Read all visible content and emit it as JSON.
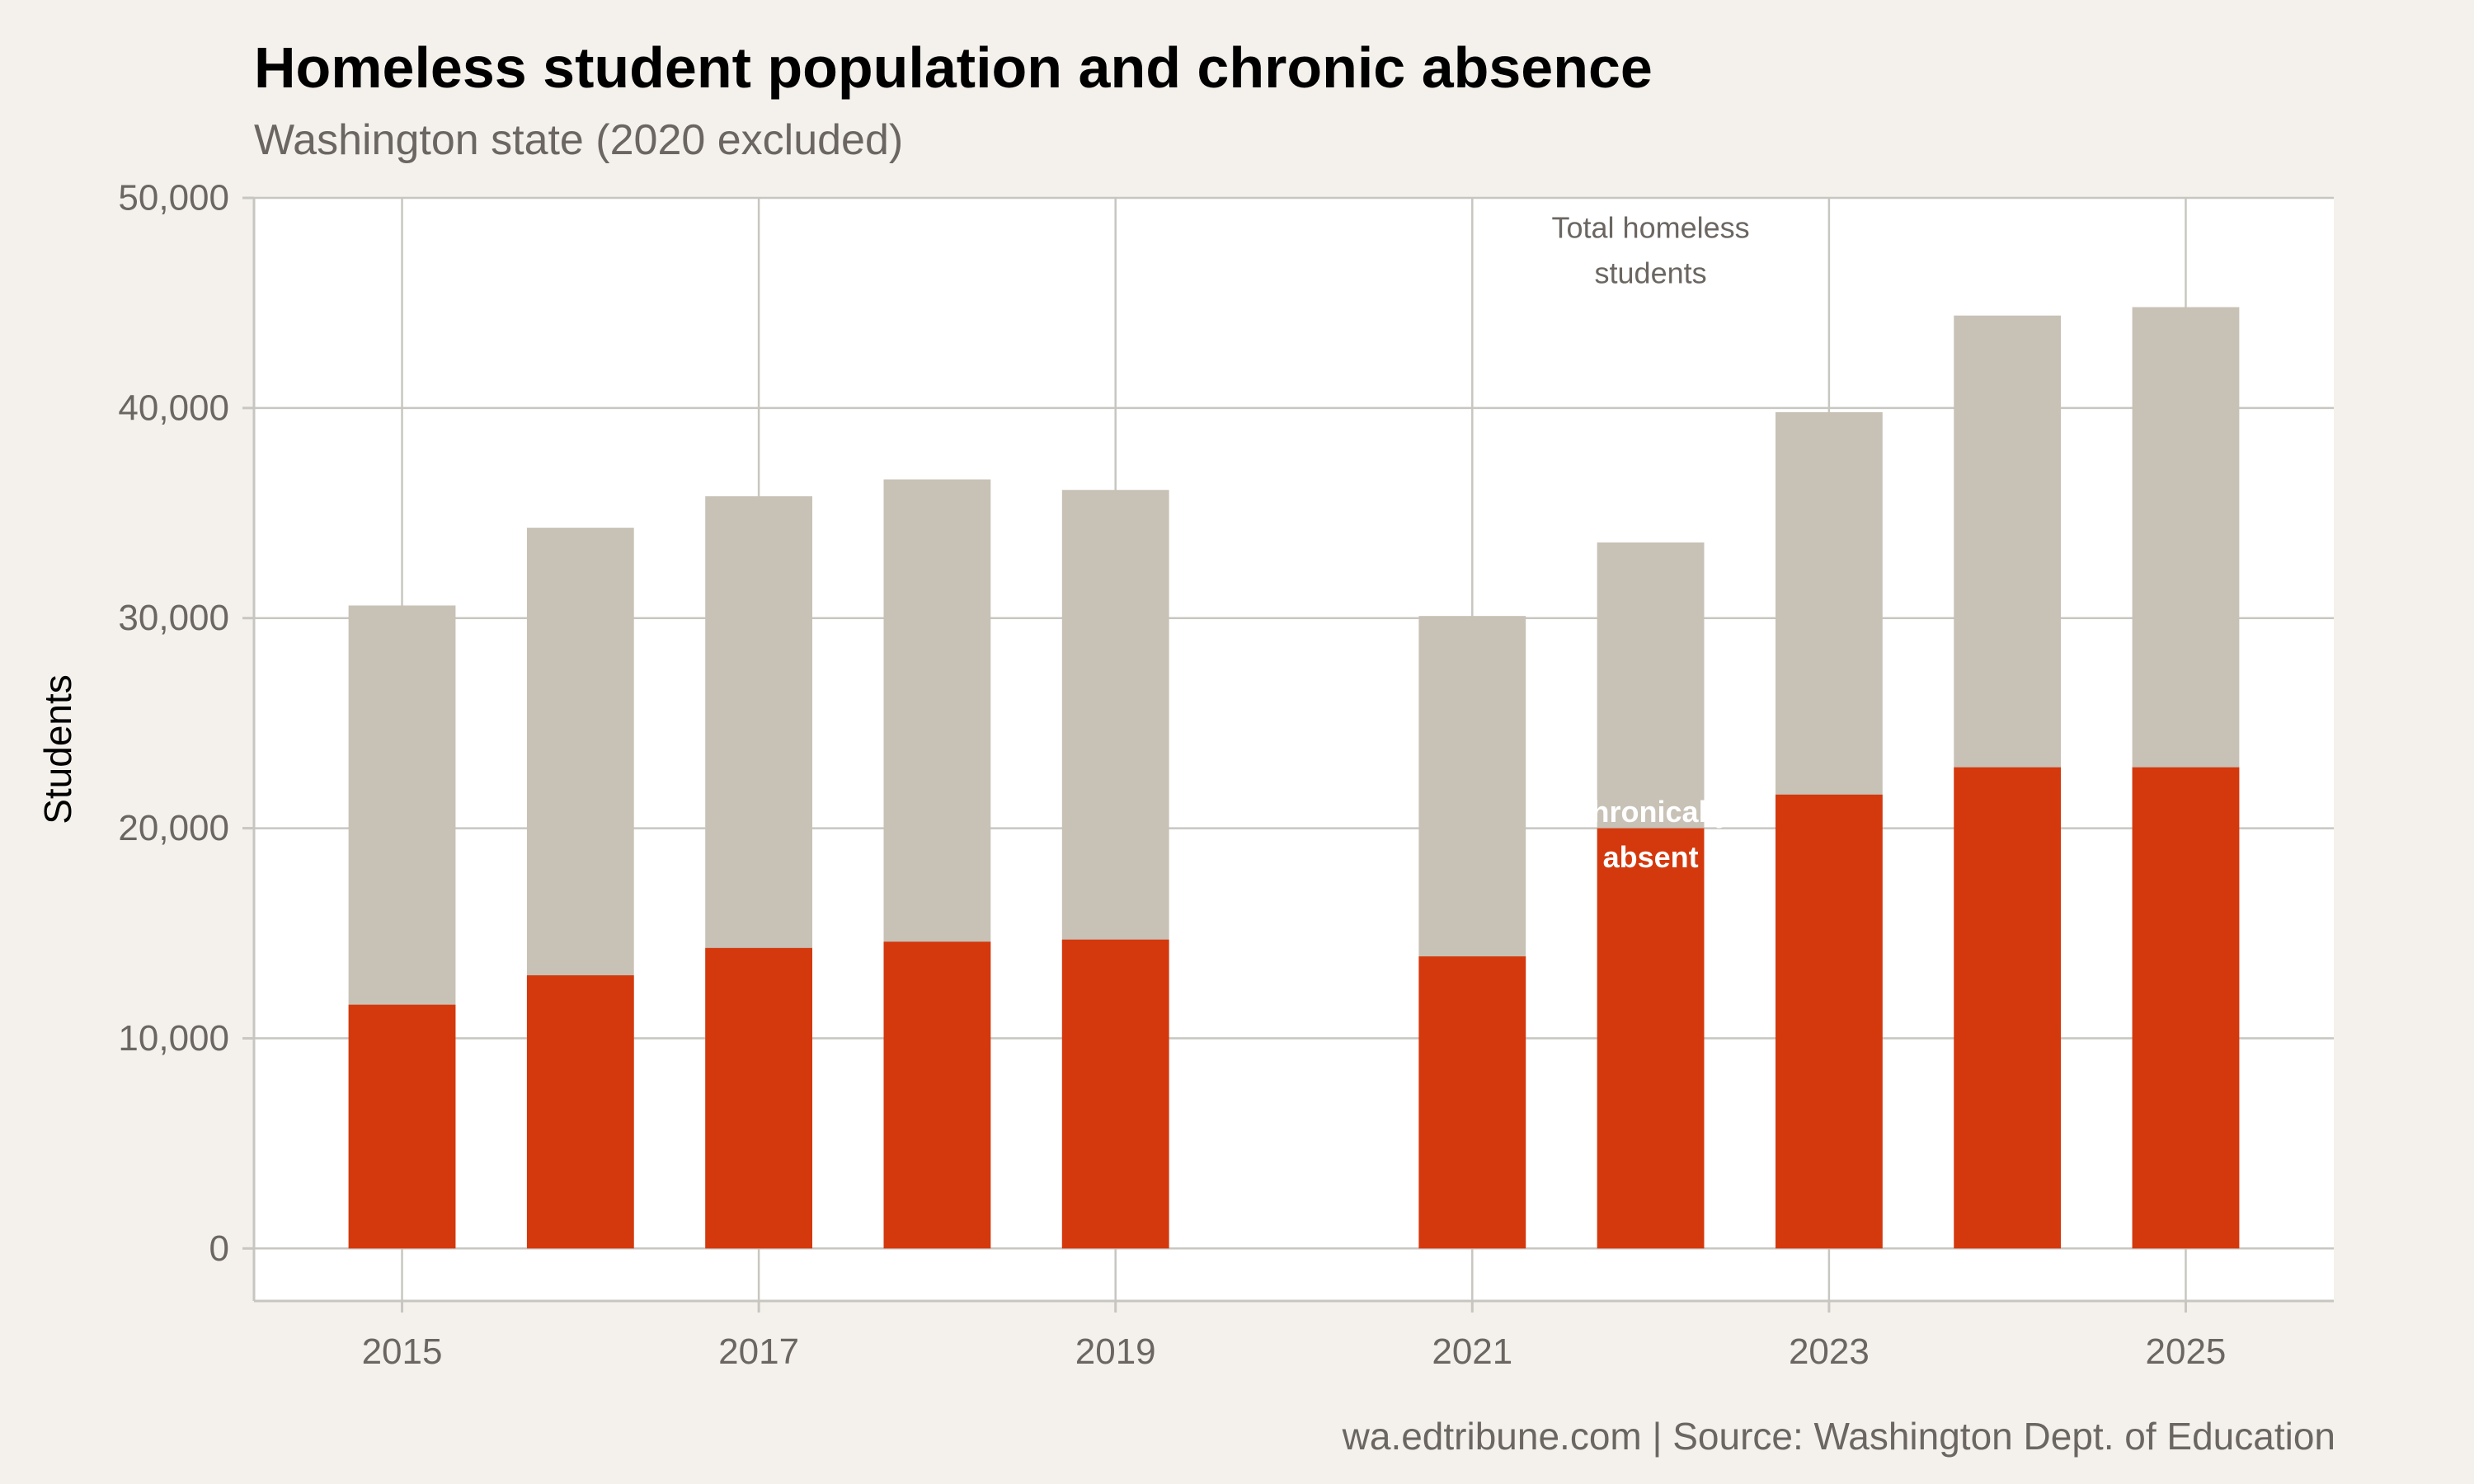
{
  "header": {
    "title": "Homeless student population and chronic absence",
    "subtitle": "Washington state (2020 excluded)"
  },
  "footer": {
    "caption": "wa.edtribune.com | Source: Washington Dept. of Education"
  },
  "colors": {
    "background": "#f4f1ec",
    "panel": "#ffffff",
    "total": "#c8c1b6",
    "chronic": "#d4380d",
    "grid": "#c8c6c0"
  },
  "chart_data": {
    "type": "bar",
    "title": "Homeless student population and chronic absence",
    "subtitle": "Washington state (2020 excluded)",
    "xlabel": "",
    "ylabel": "Students",
    "x": [
      2015,
      2016,
      2017,
      2018,
      2019,
      2021,
      2022,
      2023,
      2024,
      2025
    ],
    "xlim": [
      2014.17,
      2025.83
    ],
    "ylim": [
      -2500,
      50000
    ],
    "x_ticks": [
      2015,
      2017,
      2019,
      2021,
      2023,
      2025
    ],
    "x_tick_labels": [
      "2015",
      "2017",
      "2019",
      "2021",
      "2023",
      "2025"
    ],
    "y_ticks": [
      0,
      10000,
      20000,
      30000,
      40000,
      50000
    ],
    "y_tick_labels": [
      "0",
      "10,000",
      "20,000",
      "30,000",
      "40,000",
      "50,000"
    ],
    "grid": true,
    "overlap": true,
    "series": [
      {
        "values": [
          30600,
          34300,
          35800,
          36600,
          36100,
          30100,
          33600,
          39800,
          44400,
          44800
        ],
        "color": "#c8c1b6"
      },
      {
        "values": [
          11600,
          13000,
          14300,
          14600,
          14700,
          13900,
          20000,
          21600,
          22900,
          22900
        ],
        "color": "#d4380d"
      }
    ],
    "annotations": [
      {
        "lines": [
          "Total homeless",
          "students"
        ],
        "x": 2022,
        "y": 47500,
        "style": "grey"
      },
      {
        "lines": [
          "Chronically",
          "absent"
        ],
        "x": 2022,
        "y": 19700,
        "style": "white"
      }
    ]
  }
}
